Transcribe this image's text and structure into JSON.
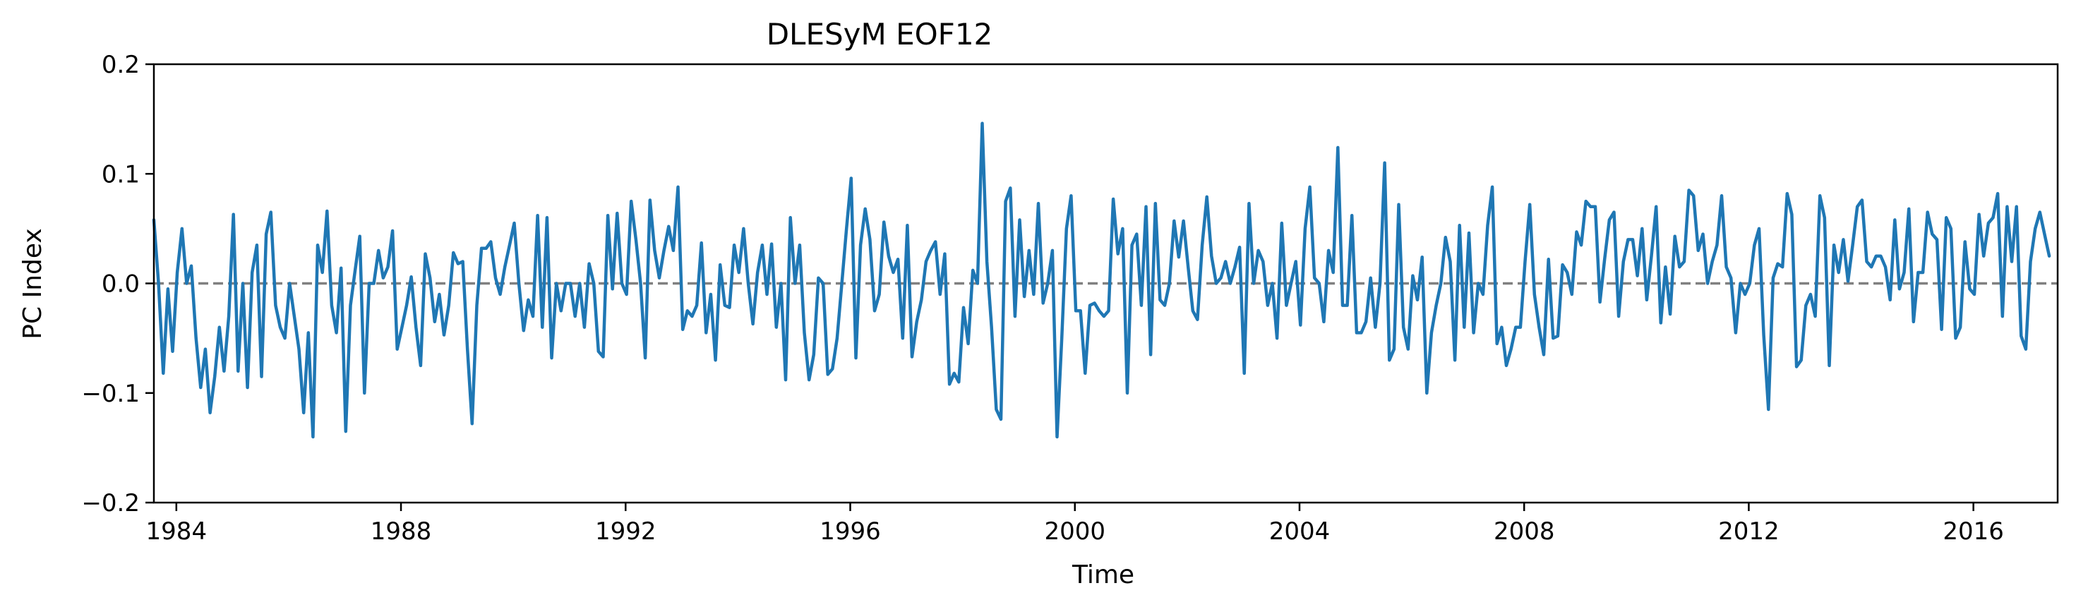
{
  "chart_data": {
    "type": "line",
    "title": "DLESyM  EOF12",
    "xlabel": "Time",
    "ylabel": "PC Index",
    "xlim": [
      1983.6,
      2017.5
    ],
    "ylim": [
      -0.2,
      0.2
    ],
    "x_ticks": [
      1984,
      1988,
      1992,
      1996,
      2000,
      2004,
      2008,
      2012,
      2016
    ],
    "y_ticks": [
      -0.2,
      -0.1,
      0.0,
      0.1,
      0.2
    ],
    "y_tick_labels": [
      "−0.2",
      "−0.1",
      "0.0",
      "0.1",
      "0.2"
    ],
    "grid": false,
    "reference_line": {
      "y": 0.0,
      "style": "dashed",
      "color": "#808080"
    },
    "series": [
      {
        "color": "#1f77b4",
        "x_start": 1983.6,
        "x_step": 0.0833333,
        "values": [
          0.058,
          0.0,
          -0.082,
          -0.005,
          -0.062,
          0.01,
          0.05,
          0.0,
          0.016,
          -0.05,
          -0.095,
          -0.06,
          -0.118,
          -0.085,
          -0.04,
          -0.08,
          -0.03,
          0.063,
          -0.08,
          0.0,
          -0.095,
          0.01,
          0.035,
          -0.085,
          0.045,
          0.065,
          -0.02,
          -0.04,
          -0.05,
          0.0,
          -0.03,
          -0.06,
          -0.118,
          -0.045,
          -0.14,
          0.035,
          0.01,
          0.066,
          -0.02,
          -0.045,
          0.014,
          -0.135,
          -0.02,
          0.012,
          0.043,
          -0.1,
          0.0,
          0.0,
          0.03,
          0.005,
          0.015,
          0.048,
          -0.06,
          -0.04,
          -0.02,
          0.006,
          -0.04,
          -0.075,
          0.027,
          0.005,
          -0.035,
          -0.01,
          -0.047,
          -0.02,
          0.028,
          0.018,
          0.02,
          -0.06,
          -0.128,
          -0.02,
          0.032,
          0.032,
          0.038,
          0.005,
          -0.01,
          0.015,
          0.035,
          0.055,
          0.0,
          -0.043,
          -0.015,
          -0.03,
          0.062,
          -0.04,
          0.06,
          -0.068,
          0.0,
          -0.025,
          0.0,
          0.0,
          -0.03,
          0.0,
          -0.04,
          0.018,
          0.0,
          -0.062,
          -0.067,
          0.062,
          -0.005,
          0.064,
          0.0,
          -0.01,
          0.075,
          0.04,
          0.0,
          -0.068,
          0.076,
          0.03,
          0.005,
          0.03,
          0.052,
          0.03,
          0.088,
          -0.042,
          -0.025,
          -0.03,
          -0.02,
          0.037,
          -0.045,
          -0.01,
          -0.07,
          0.017,
          -0.02,
          -0.022,
          0.035,
          0.01,
          0.05,
          0.0,
          -0.037,
          0.01,
          0.035,
          -0.01,
          0.036,
          -0.04,
          0.0,
          -0.088,
          0.06,
          0.0,
          0.035,
          -0.045,
          -0.088,
          -0.065,
          0.005,
          0.0,
          -0.083,
          -0.078,
          -0.05,
          0.0,
          0.05,
          0.096,
          -0.068,
          0.035,
          0.068,
          0.04,
          -0.025,
          -0.01,
          0.056,
          0.025,
          0.01,
          0.022,
          -0.05,
          0.053,
          -0.067,
          -0.035,
          -0.015,
          0.02,
          0.03,
          0.038,
          -0.01,
          0.027,
          -0.092,
          -0.082,
          -0.09,
          -0.022,
          -0.055,
          0.012,
          0.0,
          0.146,
          0.02,
          -0.04,
          -0.115,
          -0.124,
          0.075,
          0.087,
          -0.03,
          0.058,
          -0.012,
          0.03,
          -0.01,
          0.073,
          -0.018,
          0.0,
          0.03,
          -0.14,
          -0.05,
          0.05,
          0.08,
          -0.025,
          -0.025,
          -0.082,
          -0.02,
          -0.018,
          -0.025,
          -0.03,
          -0.025,
          0.077,
          0.027,
          0.05,
          -0.1,
          0.035,
          0.045,
          -0.02,
          0.07,
          -0.065,
          0.073,
          -0.015,
          -0.02,
          0.0,
          0.057,
          0.024,
          0.057,
          0.015,
          -0.025,
          -0.033,
          0.035,
          0.079,
          0.025,
          0.0,
          0.005,
          0.02,
          0.0,
          0.015,
          0.033,
          -0.082,
          0.073,
          0.0,
          0.03,
          0.02,
          -0.02,
          0.0,
          -0.05,
          0.055,
          -0.02,
          0.0,
          0.02,
          -0.038,
          0.05,
          0.088,
          0.005,
          0.0,
          -0.035,
          0.03,
          0.01,
          0.124,
          -0.02,
          -0.02,
          0.062,
          -0.045,
          -0.045,
          -0.035,
          0.005,
          -0.04,
          0.0,
          0.11,
          -0.07,
          -0.06,
          0.072,
          -0.04,
          -0.06,
          0.007,
          -0.015,
          0.024,
          -0.1,
          -0.045,
          -0.02,
          0.0,
          0.042,
          0.02,
          -0.07,
          0.053,
          -0.04,
          0.046,
          -0.045,
          0.0,
          -0.01,
          0.053,
          0.088,
          -0.055,
          -0.04,
          -0.075,
          -0.06,
          -0.04,
          -0.04,
          0.02,
          0.072,
          -0.01,
          -0.04,
          -0.065,
          0.022,
          -0.05,
          -0.048,
          0.017,
          0.01,
          -0.01,
          0.047,
          0.035,
          0.075,
          0.07,
          0.07,
          -0.017,
          0.022,
          0.058,
          0.065,
          -0.03,
          0.02,
          0.04,
          0.04,
          0.007,
          0.05,
          -0.015,
          0.025,
          0.07,
          -0.036,
          0.015,
          -0.028,
          0.043,
          0.015,
          0.02,
          0.085,
          0.08,
          0.03,
          0.045,
          0.0,
          0.02,
          0.035,
          0.08,
          0.015,
          0.005,
          -0.045,
          0.0,
          -0.01,
          0.0,
          0.035,
          0.05,
          -0.047,
          -0.115,
          0.005,
          0.018,
          0.015,
          0.082,
          0.063,
          -0.076,
          -0.07,
          -0.02,
          -0.01,
          -0.03,
          0.08,
          0.06,
          -0.075,
          0.035,
          0.01,
          0.04,
          0.002,
          0.035,
          0.07,
          0.076,
          0.02,
          0.015,
          0.025,
          0.025,
          0.015,
          -0.015,
          0.058,
          -0.005,
          0.01,
          0.068,
          -0.035,
          0.01,
          0.01,
          0.065,
          0.045,
          0.04,
          -0.042,
          0.06,
          0.05,
          -0.05,
          -0.04,
          0.038,
          -0.005,
          -0.01,
          0.063,
          0.025,
          0.055,
          0.06,
          0.082,
          -0.03,
          0.07,
          0.02,
          0.07,
          -0.048,
          -0.06,
          0.02,
          0.05,
          0.065,
          0.045,
          0.025
        ]
      }
    ]
  }
}
